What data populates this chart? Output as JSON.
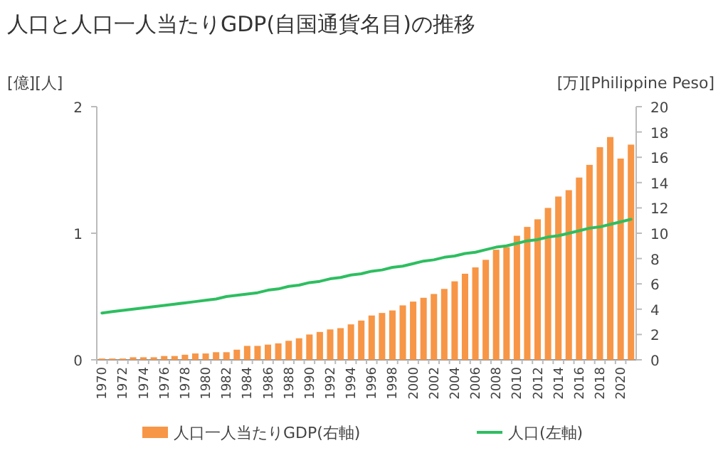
{
  "chart_data": {
    "type": "bar",
    "title": "人口と人口一人当たりGDP(自国通貨名目)の推移",
    "ylabel": "[億][人]",
    "y2label": "[万][Philippine Peso]",
    "categories": [
      "1970",
      null,
      "1972",
      null,
      "1974",
      null,
      "1976",
      null,
      "1978",
      null,
      "1980",
      null,
      "1982",
      null,
      "1984",
      null,
      "1986",
      null,
      "1988",
      null,
      "1990",
      null,
      "1992",
      null,
      "1994",
      null,
      "1996",
      null,
      "1998",
      null,
      "2000",
      null,
      "2002",
      null,
      "2004",
      null,
      "2006",
      null,
      "2008",
      null,
      "2010",
      null,
      "2012",
      null,
      "2014",
      null,
      "2016",
      null,
      "2018",
      null,
      "2020",
      null
    ],
    "series": [
      {
        "name": "人口一人当たりGDP(右軸)",
        "axis": "y2",
        "color": "#f79646",
        "values": [
          0.1,
          0.1,
          0.1,
          0.2,
          0.2,
          0.2,
          0.3,
          0.3,
          0.4,
          0.5,
          0.5,
          0.6,
          0.6,
          0.8,
          1.1,
          1.1,
          1.2,
          1.3,
          1.5,
          1.7,
          2.0,
          2.2,
          2.4,
          2.5,
          2.8,
          3.1,
          3.5,
          3.7,
          3.9,
          4.3,
          4.6,
          4.9,
          5.2,
          5.6,
          6.2,
          6.8,
          7.3,
          7.9,
          8.7,
          8.9,
          9.8,
          10.5,
          11.1,
          12.0,
          12.9,
          13.4,
          14.4,
          15.4,
          16.8,
          17.6,
          15.9,
          17.0
        ]
      },
      {
        "name": "人口(左軸)",
        "type": "line",
        "axis": "y",
        "color": "#2dbe60",
        "values": [
          0.37,
          0.38,
          0.39,
          0.4,
          0.41,
          0.42,
          0.43,
          0.44,
          0.45,
          0.46,
          0.47,
          0.48,
          0.5,
          0.51,
          0.52,
          0.53,
          0.55,
          0.56,
          0.58,
          0.59,
          0.61,
          0.62,
          0.64,
          0.65,
          0.67,
          0.68,
          0.7,
          0.71,
          0.73,
          0.74,
          0.76,
          0.78,
          0.79,
          0.81,
          0.82,
          0.84,
          0.85,
          0.87,
          0.89,
          0.9,
          0.92,
          0.94,
          0.95,
          0.97,
          0.98,
          1.0,
          1.02,
          1.04,
          1.05,
          1.07,
          1.09,
          1.11
        ]
      }
    ],
    "ylim": [
      0,
      2
    ],
    "yticks": [
      0,
      1,
      2
    ],
    "y2lim": [
      0,
      20
    ],
    "y2ticks": [
      0,
      2,
      4,
      6,
      8,
      10,
      12,
      14,
      16,
      18,
      20
    ],
    "legend": "bottom"
  }
}
